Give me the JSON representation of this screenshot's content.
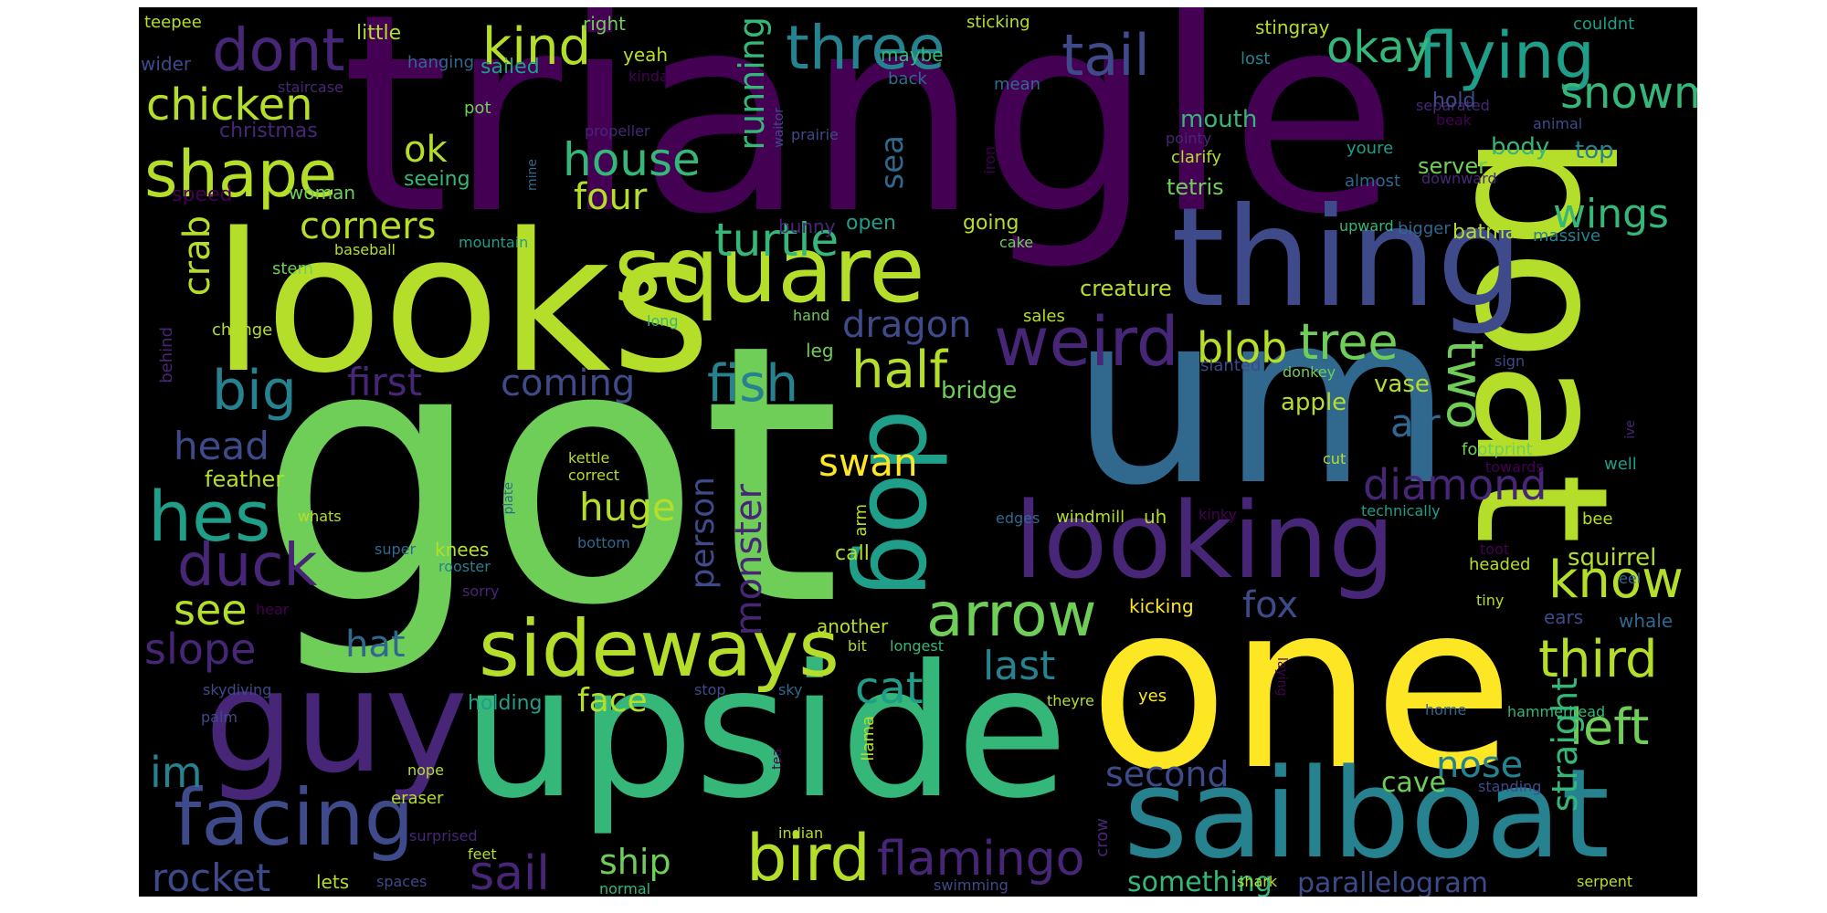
{
  "image": {
    "background": "#000000",
    "palette": [
      "#440154",
      "#482677",
      "#3e4a89",
      "#31688e",
      "#26828e",
      "#1f9e89",
      "#35b779",
      "#6ece58",
      "#b5de2b",
      "#fde725"
    ]
  },
  "words": {
    "triangle": "triangle",
    "got": "got",
    "um": "um",
    "one": "one",
    "boat": "boat",
    "looks": "looks",
    "upside": "upside",
    "thing": "thing",
    "sailboat": "sailboat",
    "guy": "guy",
    "looking": "looking",
    "square": "square",
    "dog": "dog",
    "sideways": "sideways",
    "facing": "facing",
    "weird": "weird",
    "hes": "hes",
    "bird": "bird",
    "three": "three",
    "flying": "flying",
    "shape": "shape",
    "duck": "duck",
    "arrow": "arrow",
    "dont": "dont",
    "tail": "tail",
    "kind": "kind",
    "chicken": "chicken",
    "snowman": "snowman",
    "house": "house",
    "half": "half",
    "big": "big",
    "fish": "fish",
    "know": "know",
    "third": "third",
    "left": "left",
    "two": "two",
    "diamond": "diamond",
    "tree": "tree",
    "blob": "blob",
    "okay": "okay",
    "turtle": "turtle",
    "wings": "wings",
    "cat": "cat",
    "rocket": "rocket",
    "sail": "sail",
    "flamingo": "flamingo",
    "slope": "slope",
    "see": "see",
    "im": "im",
    "head": "head",
    "first": "first",
    "coming": "coming",
    "dragon": "dragon",
    "corners": "corners",
    "crab": "crab",
    "four": "four",
    "running": "running",
    "sea": "sea",
    "ok": "ok",
    "huge": "huge",
    "person": "person",
    "monster": "monster",
    "swan": "swan",
    "last": "last",
    "face": "face",
    "ship": "ship",
    "second": "second",
    "nose": "nose",
    "straight": "straight",
    "air": "air",
    "fox": "fox",
    "hat": "hat",
    "parallelogram": "parallelogram",
    "something": "something",
    "cave": "cave",
    "squirrel": "squirrel",
    "bridge": "bridge",
    "apple": "apple",
    "vase": "vase",
    "creature": "creature",
    "feather": "feather",
    "mouth": "mouth",
    "tetris": "tetris",
    "server": "server",
    "top": "top",
    "body": "body",
    "batman": "batman",
    "massive": "massive",
    "teepee": "teepee",
    "little": "little",
    "right": "right",
    "sticking": "sticking",
    "stingray": "stingray",
    "couldnt": "couldnt",
    "wider": "wider",
    "hanging": "hanging",
    "sailed": "sailed",
    "yeah": "yeah",
    "maybe": "maybe",
    "lost": "lost",
    "staircase": "staircase",
    "kinda": "kinda",
    "back": "back",
    "mean": "mean",
    "separated": "separated",
    "hold": "hold",
    "pot": "pot",
    "christmas": "christmas",
    "propeller": "propeller",
    "waitor": "waitor",
    "prairie": "prairie",
    "beak": "beak",
    "animal": "animal",
    "pointy": "pointy",
    "youre": "youre",
    "speed": "speed",
    "woman": "woman",
    "mine": "mine",
    "iron": "iron",
    "clarify": "clarify",
    "almost": "almost",
    "downward": "downward",
    "seeing": "seeing",
    "bunny": "bunny",
    "open": "open",
    "going": "going",
    "upward": "upward",
    "bigger": "bigger",
    "baseball": "baseball",
    "mountain": "mountain",
    "cake": "cake",
    "stem": "stem",
    "long": "long",
    "hand": "hand",
    "sales": "sales",
    "change": "change",
    "leg": "leg",
    "behind": "behind",
    "sign": "sign",
    "slanted": "slanted",
    "donkey": "donkey",
    "ill": "ill",
    "kettle": "kettle",
    "correct": "correct",
    "cut": "cut",
    "footprint": "footprint",
    "towards": "towards",
    "ive": "ive",
    "well": "well",
    "whats": "whats",
    "plate": "plate",
    "arm": "arm",
    "edges": "edges",
    "windmill": "windmill",
    "uh": "uh",
    "kinky": "kinky",
    "technically": "technically",
    "bee": "bee",
    "super": "super",
    "knees": "knees",
    "bottom": "bottom",
    "rooster": "rooster",
    "call": "call",
    "toot": "toot",
    "headed": "headed",
    "eel": "eel",
    "sorry": "sorry",
    "hear": "hear",
    "kicking": "kicking",
    "tiny": "tiny",
    "ears": "ears",
    "whale": "whale",
    "another": "another",
    "bit": "bit",
    "longest": "longest",
    "skydiving": "skydiving",
    "stop": "stop",
    "sky": "sky",
    "theyre": "theyre",
    "yes": "yes",
    "hammerhead": "hammerhead",
    "palm": "palm",
    "laying": "laying",
    "holding": "holding",
    "home": "home",
    "llama": "llama",
    "standing": "standing",
    "nope": "nope",
    "tea": "tea",
    "eraser": "eraser",
    "surprised": "surprised",
    "indian": "indian",
    "feet": "feet",
    "lets": "lets",
    "spaces": "spaces",
    "normal": "normal",
    "swimming": "swimming",
    "crow": "crow",
    "shark": "shark",
    "serpent": "serpent"
  }
}
